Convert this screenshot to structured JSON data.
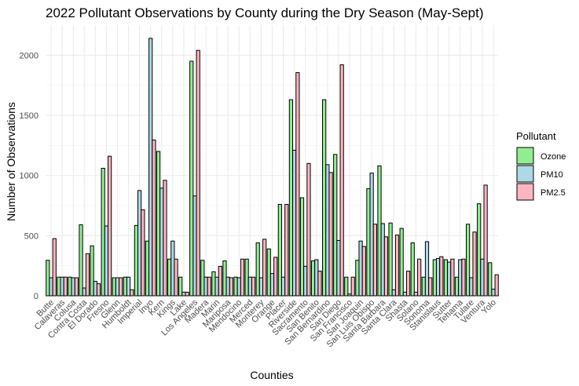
{
  "chart_data": {
    "type": "bar",
    "title": "2022 Pollutant Observations by County during the Dry Season (May-Sept)",
    "xlabel": "Counties",
    "ylabel": "Number of Observations",
    "ylim": [
      0,
      2250
    ],
    "yticks": [
      0,
      500,
      1000,
      1500,
      2000
    ],
    "grid": true,
    "legend": {
      "title": "Pollutant",
      "position": "right"
    },
    "categories": [
      "Butte",
      "Calaveras",
      "Colusa",
      "Contra Costa",
      "El Dorado",
      "Fresno",
      "Glenn",
      "Humboldt",
      "Imperial",
      "Inyo",
      "Kern",
      "Kings",
      "Lake",
      "Los Angeles",
      "Madera",
      "Marin",
      "Mariposa",
      "Mendocino",
      "Merced",
      "Monterey",
      "Orange",
      "Placer",
      "Riverside",
      "Sacramento",
      "San Benito",
      "San Bernardino",
      "San Diego",
      "San Francisco",
      "San Joaquin",
      "San Luis Obispo",
      "Santa Barbara",
      "Santa Clara",
      "Shasta",
      "Solano",
      "Sonoma",
      "Stanislaus",
      "Sutter",
      "Tehama",
      "Tulare",
      "Ventura",
      "Yolo"
    ],
    "series": [
      {
        "name": "Ozone",
        "color": "#90EE90",
        "values": [
          295,
          155,
          155,
          590,
          415,
          1060,
          150,
          155,
          585,
          455,
          1200,
          305,
          155,
          1950,
          295,
          200,
          290,
          155,
          305,
          440,
          390,
          760,
          1630,
          815,
          290,
          1630,
          1175,
          155,
          295,
          890,
          1080,
          605,
          560,
          440,
          155,
          300,
          300,
          155,
          595,
          765,
          275
        ]
      },
      {
        "name": "PM10",
        "color": "#ADD8E6",
        "values": [
          150,
          155,
          150,
          65,
          120,
          580,
          150,
          155,
          875,
          2140,
          895,
          455,
          30,
          830,
          155,
          155,
          155,
          150,
          155,
          150,
          185,
          155,
          1210,
          245,
          300,
          1090,
          460,
          15,
          455,
          1020,
          600,
          50,
          30,
          30,
          450,
          310,
          280,
          300,
          150,
          305,
          55
        ]
      },
      {
        "name": "PM2.5",
        "color": "#FFB6C1",
        "values": [
          475,
          155,
          150,
          350,
          100,
          1160,
          150,
          50,
          715,
          1295,
          960,
          305,
          30,
          2040,
          155,
          245,
          150,
          305,
          155,
          470,
          320,
          760,
          1855,
          1100,
          205,
          1025,
          1920,
          155,
          410,
          595,
          490,
          505,
          205,
          305,
          150,
          325,
          305,
          305,
          530,
          920,
          175
        ]
      }
    ]
  }
}
